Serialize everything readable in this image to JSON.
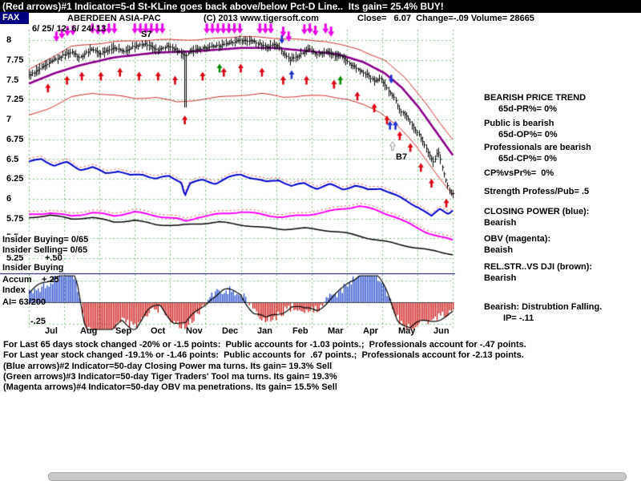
{
  "header": {
    "banner": "(Red arrows)#1 Indicator=5-d St-KLine goes back above/below Pct-D Line..  Its gain= 25.4% BUY!",
    "symbol": "FAX",
    "name": "ABERDEEN ASIA-PAC",
    "copyright": "(C) 2013 www.tigersoft.com",
    "quote": "Close=   6.07  Change=-.09 Volume= 28665",
    "date_range": "6/ 25/ 12- 6/ 24/ 13"
  },
  "left_overlays": {
    "insider_buying": "Insider Buying= 0/65",
    "insider_selling": "Insider Selling= 0/65",
    "insider_buying_2": "Insider Buying",
    "accum_label": "Accum",
    "index_label": "Index",
    "ai_value": "AI= 63/200"
  },
  "right_panel": {
    "lines": [
      "BEARISH PRICE TREND",
      "65d-PR%= 0%",
      "Public is bearish",
      "65d-OP%= 0%",
      "Professionals are bearish",
      "65d-CP%= 0%",
      "CP%vsPr%=  0%",
      "Strength Profess/Pub= .5",
      "CLOSING POWER (blue):",
      "Bearish",
      "OBV (magenta):",
      "Beaish",
      "REL.STR..VS DJI (brown):",
      "Bearish",
      "Bearish: Distrubtion Falling.",
      "IP= -.11"
    ]
  },
  "footer_lines": [
    "For Last 65 days stock changed -20% or -1.5 points:  Public accounts for -1.03 points.;  Professionals account for -.47 points.",
    "For Last year stock changed -19.1% or -1.46 points:  Public accounts for  .67 points.;  Professionals account for -2.13 points.",
    "(Blue arrows)#2 Indicator=50-day Closing Power ma turns. Its gain= 19.3% Sell",
    "(Green arrows)#3 Indicator=50-day Tiger Traders' Tool ma turns. Its gain= 19.3%",
    "(Magenta arrows)#4 Indicator=50-day OBV ma penetrations. Its gain= 15.5% Sell"
  ],
  "chart_data": {
    "type": "stock-multi-panel",
    "symbol": "FAX",
    "period": "6/ 25/ 12- 6/ 24/ 13",
    "close_price": 6.07,
    "x_months": [
      "Jul",
      "Aug",
      "Sep",
      "Oct",
      "Nov",
      "Dec",
      "Jan",
      "Feb",
      "Mar",
      "Apr",
      "May",
      "Jun"
    ],
    "price_ticks": [
      "8",
      "7.75",
      "7.5",
      "7.25",
      "7",
      "6.75",
      "6.5",
      "6.25",
      "6",
      "5.75",
      "5.5",
      "5.25"
    ],
    "price_axis_range": [
      5.2,
      8.1
    ],
    "accum_ticks": [
      "+.50",
      "+.25",
      "-.25"
    ],
    "series_anchors": {
      "price_close": [
        [
          0,
          7.55
        ],
        [
          0.02,
          7.62
        ],
        [
          0.05,
          7.72
        ],
        [
          0.08,
          7.8
        ],
        [
          0.1,
          7.85
        ],
        [
          0.12,
          7.78
        ],
        [
          0.145,
          7.88
        ],
        [
          0.17,
          7.83
        ],
        [
          0.2,
          7.9
        ],
        [
          0.225,
          7.85
        ],
        [
          0.25,
          7.92
        ],
        [
          0.275,
          7.95
        ],
        [
          0.3,
          7.88
        ],
        [
          0.33,
          7.92
        ],
        [
          0.355,
          7.85
        ],
        [
          0.368,
          7.8
        ],
        [
          0.38,
          7.85
        ],
        [
          0.41,
          7.9
        ],
        [
          0.44,
          7.92
        ],
        [
          0.47,
          7.95
        ],
        [
          0.5,
          8
        ],
        [
          0.53,
          7.98
        ],
        [
          0.56,
          7.92
        ],
        [
          0.585,
          7.95
        ],
        [
          0.6,
          7.82
        ],
        [
          0.615,
          7.75
        ],
        [
          0.64,
          7.82
        ],
        [
          0.66,
          7.88
        ],
        [
          0.68,
          7.82
        ],
        [
          0.7,
          7.86
        ],
        [
          0.72,
          7.8
        ],
        [
          0.74,
          7.78
        ],
        [
          0.76,
          7.68
        ],
        [
          0.78,
          7.62
        ],
        [
          0.8,
          7.55
        ],
        [
          0.815,
          7.48
        ],
        [
          0.83,
          7.52
        ],
        [
          0.845,
          7.38
        ],
        [
          0.86,
          7.28
        ],
        [
          0.875,
          7.12
        ],
        [
          0.89,
          7.05
        ],
        [
          0.9,
          6.95
        ],
        [
          0.915,
          6.85
        ],
        [
          0.93,
          6.7
        ],
        [
          0.945,
          6.55
        ],
        [
          0.955,
          6.45
        ],
        [
          0.965,
          6.6
        ],
        [
          0.975,
          6.4
        ],
        [
          0.985,
          6.2
        ],
        [
          0.995,
          6.05
        ],
        [
          1,
          6.07
        ]
      ],
      "ma_50d": [
        [
          0,
          7.45
        ],
        [
          0.06,
          7.58
        ],
        [
          0.12,
          7.68
        ],
        [
          0.2,
          7.78
        ],
        [
          0.3,
          7.84
        ],
        [
          0.4,
          7.86
        ],
        [
          0.5,
          7.9
        ],
        [
          0.58,
          7.9
        ],
        [
          0.66,
          7.86
        ],
        [
          0.73,
          7.82
        ],
        [
          0.79,
          7.72
        ],
        [
          0.84,
          7.58
        ],
        [
          0.88,
          7.4
        ],
        [
          0.92,
          7.15
        ],
        [
          0.96,
          6.85
        ],
        [
          1,
          6.55
        ]
      ],
      "upper_band": [
        [
          0,
          7.62
        ],
        [
          0.1,
          7.92
        ],
        [
          0.2,
          7.98
        ],
        [
          0.3,
          8
        ],
        [
          0.4,
          8
        ],
        [
          0.5,
          8.05
        ],
        [
          0.6,
          8.02
        ],
        [
          0.7,
          7.98
        ],
        [
          0.78,
          7.88
        ],
        [
          0.84,
          7.74
        ],
        [
          0.89,
          7.52
        ],
        [
          0.93,
          7.25
        ],
        [
          0.97,
          6.95
        ],
        [
          1,
          6.75
        ]
      ],
      "lower_band": [
        [
          0,
          7.05
        ],
        [
          0.05,
          7.15
        ],
        [
          0.1,
          7.28
        ],
        [
          0.15,
          7.33
        ],
        [
          0.2,
          7.3
        ],
        [
          0.25,
          7.26
        ],
        [
          0.3,
          7.28
        ],
        [
          0.35,
          7.22
        ],
        [
          0.4,
          7.25
        ],
        [
          0.45,
          7.28
        ],
        [
          0.5,
          7.3
        ],
        [
          0.55,
          7.32
        ],
        [
          0.6,
          7.28
        ],
        [
          0.65,
          7.3
        ],
        [
          0.7,
          7.3
        ],
        [
          0.75,
          7.26
        ],
        [
          0.79,
          7.18
        ],
        [
          0.83,
          7.08
        ],
        [
          0.87,
          6.92
        ],
        [
          0.91,
          6.68
        ],
        [
          0.95,
          6.4
        ],
        [
          1,
          6.05
        ]
      ],
      "closing_power": [
        [
          0,
          6.45
        ],
        [
          0.03,
          6.5
        ],
        [
          0.06,
          6.42
        ],
        [
          0.09,
          6.46
        ],
        [
          0.12,
          6.38
        ],
        [
          0.15,
          6.4
        ],
        [
          0.18,
          6.32
        ],
        [
          0.21,
          6.35
        ],
        [
          0.24,
          6.28
        ],
        [
          0.27,
          6.3
        ],
        [
          0.3,
          6.25
        ],
        [
          0.33,
          6.28
        ],
        [
          0.36,
          6.22
        ],
        [
          0.368,
          6.05
        ],
        [
          0.38,
          6.2
        ],
        [
          0.41,
          6.24
        ],
        [
          0.44,
          6.2
        ],
        [
          0.47,
          6.26
        ],
        [
          0.5,
          6.3
        ],
        [
          0.53,
          6.25
        ],
        [
          0.56,
          6.2
        ],
        [
          0.59,
          6.24
        ],
        [
          0.62,
          6.16
        ],
        [
          0.65,
          6.2
        ],
        [
          0.68,
          6.14
        ],
        [
          0.71,
          6.18
        ],
        [
          0.74,
          6.12
        ],
        [
          0.77,
          6.16
        ],
        [
          0.8,
          6.1
        ],
        [
          0.83,
          6.13
        ],
        [
          0.86,
          6.05
        ],
        [
          0.89,
          5.98
        ],
        [
          0.92,
          5.9
        ],
        [
          0.95,
          5.78
        ],
        [
          0.97,
          5.88
        ],
        [
          0.99,
          5.82
        ],
        [
          1,
          5.86
        ]
      ],
      "obv": [
        [
          0,
          5.8
        ],
        [
          0.05,
          5.83
        ],
        [
          0.1,
          5.78
        ],
        [
          0.15,
          5.82
        ],
        [
          0.2,
          5.78
        ],
        [
          0.25,
          5.83
        ],
        [
          0.3,
          5.79
        ],
        [
          0.35,
          5.75
        ],
        [
          0.37,
          5.72
        ],
        [
          0.4,
          5.77
        ],
        [
          0.45,
          5.8
        ],
        [
          0.5,
          5.83
        ],
        [
          0.55,
          5.8
        ],
        [
          0.6,
          5.77
        ],
        [
          0.65,
          5.8
        ],
        [
          0.7,
          5.83
        ],
        [
          0.74,
          5.87
        ],
        [
          0.78,
          5.9
        ],
        [
          0.82,
          5.85
        ],
        [
          0.86,
          5.78
        ],
        [
          0.9,
          5.68
        ],
        [
          0.94,
          5.58
        ],
        [
          0.97,
          5.52
        ],
        [
          1,
          5.48
        ]
      ],
      "rel_strength_dji": [
        [
          0,
          5.76
        ],
        [
          0.05,
          5.79
        ],
        [
          0.1,
          5.74
        ],
        [
          0.15,
          5.76
        ],
        [
          0.2,
          5.71
        ],
        [
          0.25,
          5.73
        ],
        [
          0.3,
          5.68
        ],
        [
          0.35,
          5.66
        ],
        [
          0.4,
          5.68
        ],
        [
          0.45,
          5.7
        ],
        [
          0.5,
          5.67
        ],
        [
          0.55,
          5.64
        ],
        [
          0.6,
          5.62
        ],
        [
          0.65,
          5.63
        ],
        [
          0.7,
          5.6
        ],
        [
          0.75,
          5.56
        ],
        [
          0.8,
          5.5
        ],
        [
          0.85,
          5.45
        ],
        [
          0.9,
          5.4
        ],
        [
          0.95,
          5.35
        ],
        [
          1,
          5.3
        ]
      ],
      "accum_index": [
        [
          0,
          0.1
        ],
        [
          0.04,
          0.2
        ],
        [
          0.07,
          0.32
        ],
        [
          0.1,
          0.38
        ],
        [
          0.115,
          0.15
        ],
        [
          0.13,
          -0.25
        ],
        [
          0.16,
          -0.45
        ],
        [
          0.19,
          -0.38
        ],
        [
          0.22,
          -0.2
        ],
        [
          0.25,
          -0.28
        ],
        [
          0.28,
          -0.12
        ],
        [
          0.31,
          -0.06
        ],
        [
          0.34,
          -0.22
        ],
        [
          0.37,
          -0.28
        ],
        [
          0.4,
          -0.1
        ],
        [
          0.43,
          0.08
        ],
        [
          0.46,
          0.14
        ],
        [
          0.5,
          0.12
        ],
        [
          0.53,
          -0.1
        ],
        [
          0.56,
          -0.22
        ],
        [
          0.59,
          -0.14
        ],
        [
          0.62,
          -0.05
        ],
        [
          0.65,
          -0.12
        ],
        [
          0.68,
          -0.08
        ],
        [
          0.71,
          0.06
        ],
        [
          0.74,
          0.15
        ],
        [
          0.77,
          0.3
        ],
        [
          0.795,
          0.45
        ],
        [
          0.82,
          0.3
        ],
        [
          0.845,
          0.1
        ],
        [
          0.87,
          -0.2
        ],
        [
          0.9,
          -0.32
        ],
        [
          0.93,
          -0.25
        ],
        [
          0.96,
          -0.18
        ],
        [
          1,
          -0.12
        ]
      ]
    },
    "price_spike": {
      "x": 0.368,
      "low": 7.15
    },
    "arrows": {
      "red_up": [
        [
          0.045,
          7.45
        ],
        [
          0.09,
          7.55
        ],
        [
          0.125,
          7.6
        ],
        [
          0.17,
          7.6
        ],
        [
          0.215,
          7.65
        ],
        [
          0.26,
          7.6
        ],
        [
          0.305,
          7.6
        ],
        [
          0.345,
          7.55
        ],
        [
          0.368,
          7.05
        ],
        [
          0.41,
          7.6
        ],
        [
          0.46,
          7.65
        ],
        [
          0.5,
          7.7
        ],
        [
          0.55,
          7.65
        ],
        [
          0.6,
          7.55
        ],
        [
          0.655,
          7.55
        ],
        [
          0.72,
          7.5
        ],
        [
          0.775,
          7.35
        ],
        [
          0.815,
          7.2
        ],
        [
          0.845,
          7.05
        ],
        [
          0.875,
          6.85
        ],
        [
          0.9,
          6.7
        ],
        [
          0.925,
          6.45
        ],
        [
          0.95,
          6.25
        ],
        [
          0.985,
          6.0
        ]
      ],
      "magenta_down_x": [
        0.065,
        0.078,
        0.091,
        0.104,
        0.15,
        0.163,
        0.176,
        0.189,
        0.202,
        0.25,
        0.263,
        0.276,
        0.289,
        0.302,
        0.315,
        0.42,
        0.433,
        0.446,
        0.459,
        0.472,
        0.485,
        0.498,
        0.545,
        0.558,
        0.571,
        0.6,
        0.613,
        0.65,
        0.663,
        0.676,
        0.7,
        0.713
      ],
      "blue_down": [
        [
          0.597,
          7.95
        ],
        [
          0.855,
          7.45
        ]
      ],
      "blue_up": [
        [
          0.62,
          7.62
        ],
        [
          0.852,
          6.98
        ],
        [
          0.865,
          6.98
        ]
      ],
      "green_up": [
        [
          0.45,
          7.7
        ],
        [
          0.735,
          7.55
        ]
      ]
    },
    "signal_labels": [
      {
        "text": "S7",
        "x": 0.275,
        "price": 8.07
      },
      {
        "text": "B7",
        "x": 0.873,
        "price": 6.52
      }
    ],
    "colors": {
      "ma": "#880088",
      "bands": "#cc2222",
      "closing_power": "#0000cc",
      "obv": "#ff00ff",
      "rel_strength": "#000000",
      "accum_pos": "#2244cc",
      "accum_neg": "#cc1111",
      "grid": "#7fbf7f",
      "arrow_red": "#dd0011",
      "arrow_blue": "#2233cc",
      "arrow_magenta": "#e800e8",
      "arrow_green": "#008800"
    }
  }
}
